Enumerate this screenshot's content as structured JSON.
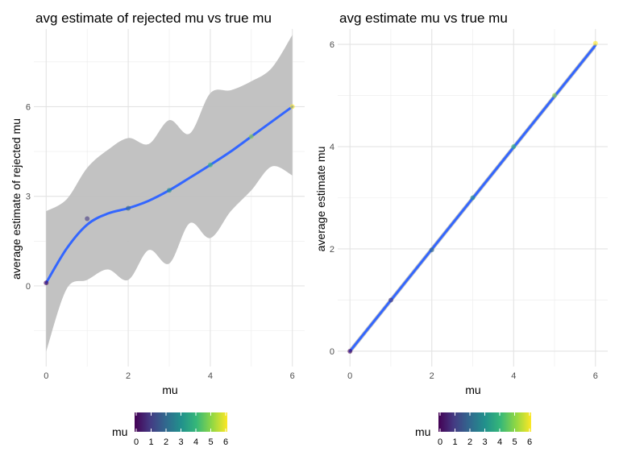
{
  "chart_data": [
    {
      "type": "scatter",
      "title": "avg estimate of rejected mu vs true mu",
      "xlabel": "mu",
      "ylabel": "average estimate of rejected mu",
      "xlim": [
        -0.3,
        6.3
      ],
      "ylim": [
        -2.7,
        8.6
      ],
      "xticks": [
        0,
        2,
        4,
        6
      ],
      "yticks": [
        0,
        3,
        6
      ],
      "grid": true,
      "legend_position": "bottom",
      "color_by": "mu",
      "x": [
        0,
        1,
        2,
        3,
        4,
        5,
        6
      ],
      "y": [
        0.1,
        2.25,
        2.6,
        3.2,
        4.05,
        5.0,
        6.0
      ],
      "smooth": {
        "method": "loess",
        "x": [
          0,
          0.5,
          1,
          1.5,
          2,
          2.5,
          3,
          3.5,
          4,
          4.5,
          5,
          5.5,
          6
        ],
        "y": [
          0.1,
          1.25,
          2.05,
          2.42,
          2.6,
          2.85,
          3.2,
          3.62,
          4.05,
          4.5,
          5.0,
          5.5,
          6.0
        ],
        "ymin": [
          -2.2,
          -0.1,
          0.2,
          0.55,
          0.2,
          1.2,
          0.75,
          2.1,
          1.6,
          2.5,
          3.2,
          4.0,
          3.7
        ],
        "ymax": [
          2.5,
          2.9,
          3.95,
          4.55,
          4.95,
          4.75,
          5.55,
          5.1,
          6.45,
          6.55,
          6.85,
          7.3,
          8.4
        ]
      },
      "series_color": "#3366FF",
      "ribbon_color": "#bfbfbf"
    },
    {
      "type": "scatter",
      "title": "avg estimate mu vs true mu",
      "xlabel": "mu",
      "ylabel": "average estimate mu",
      "xlim": [
        -0.3,
        6.3
      ],
      "ylim": [
        -0.3,
        6.3
      ],
      "xticks": [
        0,
        2,
        4,
        6
      ],
      "yticks": [
        0,
        2,
        4,
        6
      ],
      "grid": true,
      "legend_position": "bottom",
      "color_by": "mu",
      "x": [
        0,
        1,
        2,
        3,
        4,
        5,
        6
      ],
      "y": [
        0.0,
        1.0,
        1.98,
        3.0,
        4.0,
        5.0,
        6.02
      ],
      "smooth": {
        "method": "lm",
        "x": [
          0,
          6
        ],
        "y": [
          0.0,
          5.98
        ],
        "band": 0.06
      },
      "series_color": "#3366FF",
      "ribbon_color": "#bfbfbf"
    }
  ],
  "legend": {
    "title": "mu",
    "ticks": [
      "0",
      "1",
      "2",
      "3",
      "4",
      "5",
      "6"
    ],
    "colormap": [
      "#440154",
      "#443A83",
      "#31688E",
      "#21908C",
      "#35B779",
      "#8FD744",
      "#FDE725"
    ]
  }
}
